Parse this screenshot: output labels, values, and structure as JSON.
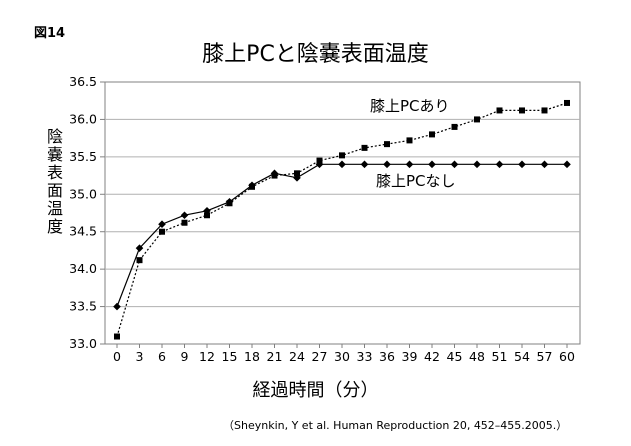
{
  "figure_label": "図14",
  "source_note": "（Sheynkin, Y et al. Human Reproduction 20, 452–455.2005.）",
  "chart_data": {
    "type": "line",
    "title": "膝上PCと陰嚢表面温度",
    "xlabel": "経過時間（分）",
    "ylabel": "陰嚢表面温度",
    "ylim": [
      33.0,
      36.5
    ],
    "yticks": [
      33.0,
      33.5,
      34.0,
      34.5,
      35.0,
      35.5,
      36.0,
      36.5
    ],
    "ytick_labels": [
      "33.0",
      "33.5",
      "34.0",
      "34.5",
      "35.0",
      "35.5",
      "36.0",
      "36.5"
    ],
    "x": [
      0,
      3,
      6,
      9,
      12,
      15,
      18,
      21,
      24,
      27,
      30,
      33,
      36,
      39,
      42,
      45,
      48,
      51,
      54,
      57,
      60
    ],
    "grid": "horizontal",
    "series": [
      {
        "name": "膝上PCあり",
        "marker": "square",
        "line": "dotted",
        "color": "#000000",
        "values": [
          33.1,
          34.12,
          34.5,
          34.62,
          34.72,
          34.88,
          35.1,
          35.25,
          35.28,
          35.45,
          35.52,
          35.62,
          35.67,
          35.72,
          35.8,
          35.9,
          36.0,
          36.12,
          36.12,
          36.12,
          36.22
        ]
      },
      {
        "name": "膝上PCなし",
        "marker": "diamond",
        "line": "solid",
        "color": "#000000",
        "values": [
          33.5,
          34.28,
          34.6,
          34.72,
          34.78,
          34.9,
          35.12,
          35.28,
          35.22,
          35.4,
          35.4,
          35.4,
          35.4,
          35.4,
          35.4,
          35.4,
          35.4,
          35.4,
          35.4,
          35.4,
          35.4
        ]
      }
    ]
  }
}
